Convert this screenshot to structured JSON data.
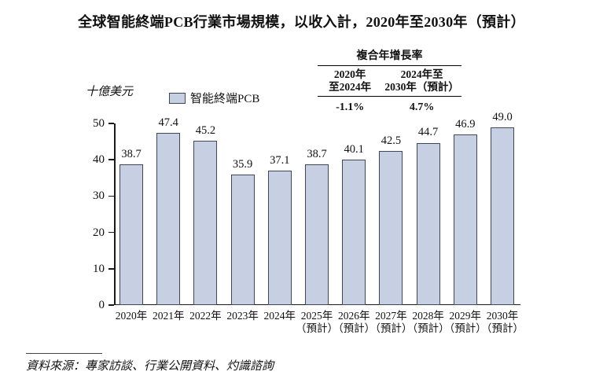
{
  "chart_data": {
    "type": "bar",
    "title": "全球智能終端PCB行業市場規模，以收入計，2020年至2030年（預計）",
    "ylabel_unit": "十億美元",
    "legend_position": "top-left-above-plot",
    "legend": [
      {
        "name": "智能終端PCB",
        "fill": "#c6d0e2",
        "border": "#3e4757"
      }
    ],
    "categories": [
      {
        "label": "2020年",
        "note": ""
      },
      {
        "label": "2021年",
        "note": ""
      },
      {
        "label": "2022年",
        "note": ""
      },
      {
        "label": "2023年",
        "note": ""
      },
      {
        "label": "2024年",
        "note": ""
      },
      {
        "label": "2025年",
        "note": "（預計）"
      },
      {
        "label": "2026年",
        "note": "（預計）"
      },
      {
        "label": "2027年",
        "note": "（預計）"
      },
      {
        "label": "2028年",
        "note": "（預計）"
      },
      {
        "label": "2029年",
        "note": "（預計）"
      },
      {
        "label": "2030年",
        "note": "（預計）"
      }
    ],
    "values": [
      38.7,
      47.4,
      45.2,
      35.9,
      37.1,
      38.7,
      40.1,
      42.5,
      44.7,
      46.9,
      49.0
    ],
    "value_labels": [
      "38.7",
      "47.4",
      "45.2",
      "35.9",
      "37.1",
      "38.7",
      "40.1",
      "42.5",
      "44.7",
      "46.9",
      "49.0"
    ],
    "ylim": [
      0,
      50
    ],
    "yticks": [
      0,
      10,
      20,
      30,
      40,
      50
    ],
    "grid": false
  },
  "cagr_table": {
    "header": "複合年增長率",
    "columns": [
      {
        "line1": "2020年",
        "line2": "至2024年",
        "value": "-1.1%"
      },
      {
        "line1": "2024年至",
        "line2": "2030年（預計）",
        "value": "4.7%"
      }
    ]
  },
  "source": {
    "text": "資料來源：專家訪談、行業公開資料、灼識諮詢"
  },
  "colors": {
    "bar_fill": "#c6d0e2",
    "bar_border": "#3e4757",
    "axis": "#1a1a1a"
  }
}
